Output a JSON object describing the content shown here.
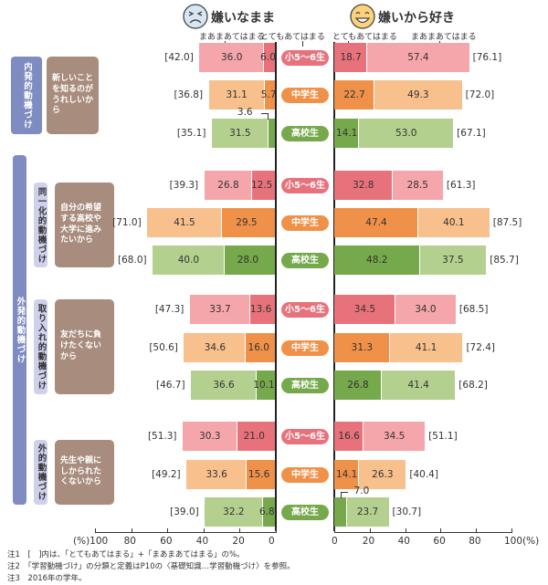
{
  "chart_data": {
    "type": "bar",
    "orientation": "diverging-horizontal-stacked",
    "left_panel": {
      "title": "嫌いなまま",
      "icon": "frowning-face-icon",
      "legend": [
        "まあまあてはまる",
        "とてもあてはまる"
      ]
    },
    "right_panel": {
      "title": "嫌いから好き",
      "icon": "smiling-face-icon",
      "legend": [
        "とてもあてはまる",
        "まあまあてはまる"
      ]
    },
    "grades": [
      "小5～6生",
      "中学生",
      "高校生"
    ],
    "grade_colors": {
      "小5～6生": {
        "very": "#e8727c",
        "somewhat": "#f5a6ab"
      },
      "中学生": {
        "very": "#f0914a",
        "somewhat": "#f8c08c"
      },
      "高校生": {
        "very": "#76a84c",
        "somewhat": "#b4d08e"
      }
    },
    "categories_outer": [
      {
        "label": "内発的動機づけ"
      },
      {
        "label": "外発的動機づけ"
      }
    ],
    "groups": [
      {
        "outer": "内発的動機づけ",
        "sub": "",
        "reason": "新しいことを知るのがうれしいから",
        "rows": [
          {
            "grade": "小5～6生",
            "left": {
              "very": 6.0,
              "somewhat": 36.0,
              "total": "[42.0]"
            },
            "right": {
              "very": 18.7,
              "somewhat": 57.4,
              "total": "[76.1]"
            }
          },
          {
            "grade": "中学生",
            "left": {
              "very": 5.7,
              "somewhat": 31.1,
              "total": "[36.8]"
            },
            "right": {
              "very": 22.7,
              "somewhat": 49.3,
              "total": "[72.0]"
            }
          },
          {
            "grade": "高校生",
            "left": {
              "very": 3.6,
              "somewhat": 31.5,
              "total": "[35.1]"
            },
            "right": {
              "very": 14.1,
              "somewhat": 53.0,
              "total": "[67.1]"
            }
          }
        ]
      },
      {
        "outer": "外発的動機づけ",
        "sub": "同一化的動機づけ",
        "reason": "自分の希望する高校や大学に進みたいから",
        "rows": [
          {
            "grade": "小5～6生",
            "left": {
              "very": 12.5,
              "somewhat": 26.8,
              "total": "[39.3]"
            },
            "right": {
              "very": 32.8,
              "somewhat": 28.5,
              "total": "[61.3]"
            }
          },
          {
            "grade": "中学生",
            "left": {
              "very": 29.5,
              "somewhat": 41.5,
              "total": "[71.0]"
            },
            "right": {
              "very": 47.4,
              "somewhat": 40.1,
              "total": "[87.5]"
            }
          },
          {
            "grade": "高校生",
            "left": {
              "very": 28.0,
              "somewhat": 40.0,
              "total": "[68.0]"
            },
            "right": {
              "very": 48.2,
              "somewhat": 37.5,
              "total": "[85.7]"
            }
          }
        ]
      },
      {
        "outer": "外発的動機づけ",
        "sub": "取り入れ的動機づけ",
        "reason": "友だちに負けたくないから",
        "rows": [
          {
            "grade": "小5～6生",
            "left": {
              "very": 13.6,
              "somewhat": 33.7,
              "total": "[47.3]"
            },
            "right": {
              "very": 34.5,
              "somewhat": 34.0,
              "total": "[68.5]"
            }
          },
          {
            "grade": "中学生",
            "left": {
              "very": 16.0,
              "somewhat": 34.6,
              "total": "[50.6]"
            },
            "right": {
              "very": 31.3,
              "somewhat": 41.1,
              "total": "[72.4]"
            }
          },
          {
            "grade": "高校生",
            "left": {
              "very": 10.1,
              "somewhat": 36.6,
              "total": "[46.7]"
            },
            "right": {
              "very": 26.8,
              "somewhat": 41.4,
              "total": "[68.2]"
            }
          }
        ]
      },
      {
        "outer": "外発的動機づけ",
        "sub": "外的動機づけ",
        "reason": "先生や親にしかられたくないから",
        "rows": [
          {
            "grade": "小5～6生",
            "left": {
              "very": 21.0,
              "somewhat": 30.3,
              "total": "[51.3]"
            },
            "right": {
              "very": 16.6,
              "somewhat": 34.5,
              "total": "[51.1]"
            }
          },
          {
            "grade": "中学生",
            "left": {
              "very": 15.6,
              "somewhat": 33.6,
              "total": "[49.2]"
            },
            "right": {
              "very": 14.1,
              "somewhat": 26.3,
              "total": "[40.4]"
            }
          },
          {
            "grade": "高校生",
            "left": {
              "very": 6.8,
              "somewhat": 32.2,
              "total": "[39.0]"
            },
            "right": {
              "very": 7.0,
              "somewhat": 23.7,
              "total": "[30.7]"
            }
          }
        ]
      }
    ],
    "left_axis": {
      "ticks": [
        "(%)100",
        "80",
        "60",
        "40",
        "20",
        "0"
      ],
      "range": [
        100,
        0
      ]
    },
    "right_axis": {
      "ticks": [
        "0",
        "20",
        "40",
        "60",
        "80",
        "100(%)"
      ],
      "range": [
        0,
        100
      ]
    },
    "notes": [
      "注1　[　]内は、「とてもあてはまる」+「まあまあてはまる」の%。",
      "注2　「学習動機づけ」の分類と定義はP10の〈基礎知識…学習動機づけ〉を参照。",
      "注3　2016年の学年。"
    ]
  }
}
